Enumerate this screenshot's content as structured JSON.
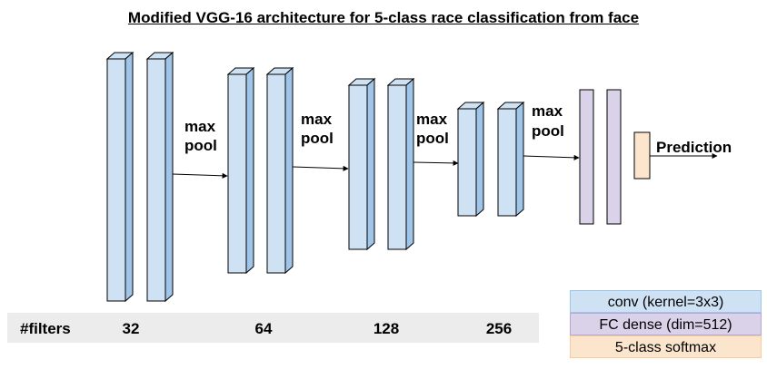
{
  "title": "Modified VGG-16 architecture for 5-class race classification from face",
  "labels": {
    "pool_line1": "max",
    "pool_line2": "pool",
    "prediction": "Prediction"
  },
  "filters": {
    "label": "#filters",
    "values": [
      "32",
      "64",
      "128",
      "256"
    ]
  },
  "legend": [
    {
      "text": "conv (kernel=3x3)",
      "color": "#cfe2f3"
    },
    {
      "text": "FC dense (dim=512)",
      "color": "#d9d2e9"
    },
    {
      "text": "5-class softmax",
      "color": "#fce5cd"
    }
  ],
  "colors": {
    "conv": "#cfe2f3",
    "fc": "#d9d2e9",
    "softmax": "#fce5cd",
    "outline": "#000000"
  }
}
